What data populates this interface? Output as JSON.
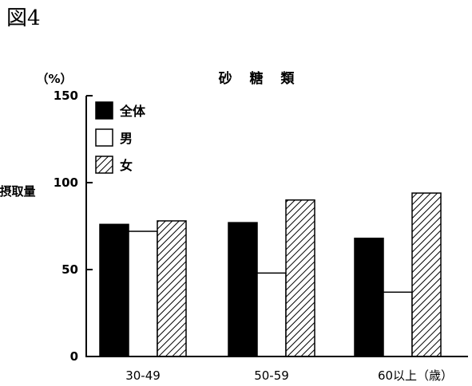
{
  "figure_label": "図4",
  "chart_data": {
    "type": "bar",
    "title": "砂 糖 類",
    "unit_label": "（%）",
    "ylabel": "摂取量",
    "ylim": [
      0,
      150
    ],
    "yticks": [
      0,
      50,
      100,
      150
    ],
    "categories": [
      "30-49",
      "50-59",
      "60以上（歳）"
    ],
    "legend_position": "top-left",
    "grid": false,
    "series": [
      {
        "name": "全体",
        "values": [
          76,
          77,
          68
        ],
        "fill": "solid-black"
      },
      {
        "name": "男",
        "values": [
          72,
          48,
          37
        ],
        "fill": "white"
      },
      {
        "name": "女",
        "values": [
          78,
          90,
          94
        ],
        "fill": "diagonal-hatch"
      }
    ],
    "colors": {
      "ink": "#000000",
      "background": "#ffffff"
    }
  }
}
